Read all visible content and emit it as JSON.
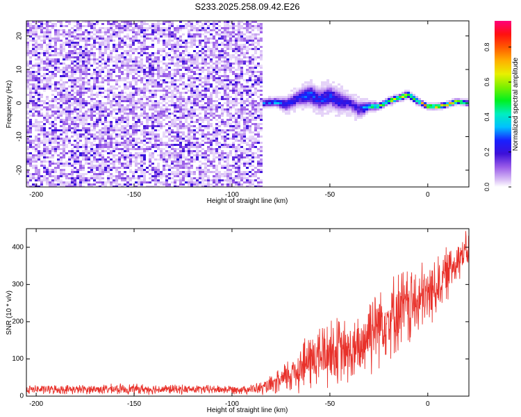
{
  "title": "S233.2025.258.09.42.E26",
  "chart_data": [
    {
      "type": "heatmap",
      "name": "spectrogram",
      "xlabel": "Height of straight line (km)",
      "ylabel": "Frequency (Hz)",
      "xlim": [
        -205,
        21
      ],
      "ylim": [
        -25,
        24.5
      ],
      "xticks": [
        -200,
        -150,
        -100,
        -50,
        0
      ],
      "yticks": [
        -20,
        -10,
        0,
        10,
        20
      ],
      "colorbar": {
        "label": "Normalized spectral amplitude",
        "range": [
          0.0,
          0.95
        ],
        "ticks": [
          0.0,
          0.2,
          0.4,
          0.6,
          0.8
        ]
      },
      "noise_region_x": [
        -205,
        -85
      ],
      "signal_ridge": {
        "x": [
          -84,
          -78,
          -72,
          -66,
          -60,
          -55,
          -50,
          -45,
          -40,
          -35,
          -30,
          -25,
          -20,
          -15,
          -10,
          -5,
          0,
          5,
          10,
          15,
          20
        ],
        "frequency": [
          0,
          0.3,
          -0.5,
          1.5,
          2.5,
          1,
          2,
          0.5,
          0,
          -2,
          -1,
          -1,
          0.5,
          1.5,
          2.5,
          0.5,
          -1,
          -1,
          -0.5,
          0.5,
          0
        ],
        "amplitude": [
          0.3,
          0.35,
          0.3,
          0.25,
          0.3,
          0.28,
          0.3,
          0.25,
          0.2,
          0.22,
          0.45,
          0.55,
          0.6,
          0.65,
          0.7,
          0.6,
          0.75,
          0.8,
          0.8,
          0.7,
          0.55
        ],
        "spread_hz": [
          2,
          2,
          3,
          4,
          5,
          5,
          5,
          5,
          4,
          4,
          2,
          1.5,
          1.5,
          1.5,
          1.5,
          1.5,
          1.2,
          1.2,
          1.2,
          1.2,
          1.2
        ]
      }
    },
    {
      "type": "line",
      "name": "snr",
      "xlabel": "Height of straight line (km)",
      "ylabel": "SNR (10 * v/v)",
      "xlim": [
        -205,
        21
      ],
      "ylim": [
        0,
        450
      ],
      "xticks": [
        -200,
        -150,
        -100,
        -50,
        0
      ],
      "yticks": [
        0,
        100,
        200,
        300,
        400
      ],
      "color": "#e8312a",
      "series_envelope": {
        "x": [
          -205,
          -180,
          -150,
          -120,
          -100,
          -90,
          -85,
          -80,
          -75,
          -70,
          -65,
          -60,
          -55,
          -50,
          -45,
          -40,
          -35,
          -30,
          -25,
          -20,
          -15,
          -10,
          -5,
          0,
          5,
          10,
          15,
          20
        ],
        "mean": [
          18,
          18,
          19,
          18,
          18,
          19,
          21,
          28,
          40,
          60,
          80,
          95,
          110,
          120,
          120,
          115,
          120,
          180,
          200,
          210,
          230,
          240,
          250,
          270,
          300,
          330,
          370,
          390
        ],
        "amp": [
          12,
          12,
          14,
          12,
          12,
          13,
          18,
          25,
          35,
          55,
          70,
          80,
          90,
          100,
          90,
          85,
          90,
          120,
          110,
          100,
          110,
          110,
          100,
          90,
          80,
          70,
          60,
          50
        ]
      }
    }
  ]
}
